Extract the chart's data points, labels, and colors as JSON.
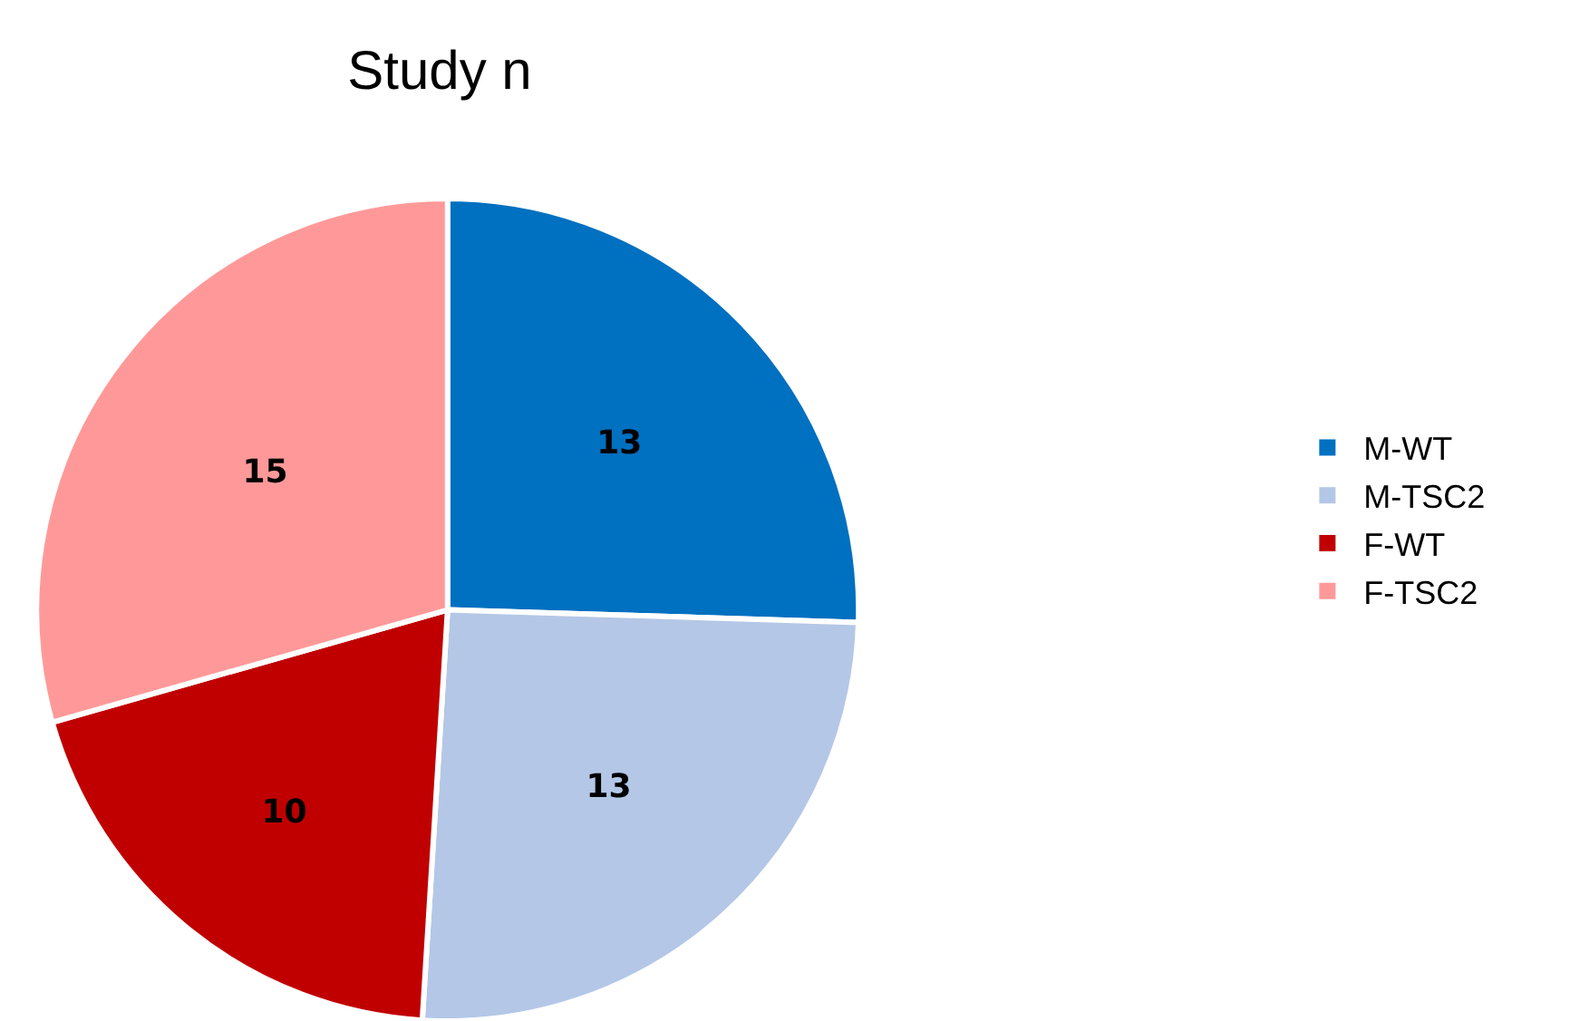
{
  "chart_data": {
    "type": "pie",
    "title": "Study n",
    "categories": [
      "M-WT",
      "M-TSC2",
      "F-WT",
      "F-TSC2"
    ],
    "values": [
      13,
      13,
      10,
      15
    ],
    "colors": [
      "#0070c0",
      "#b4c7e7",
      "#c00000",
      "#ff9999"
    ],
    "data_labels": true,
    "legend": "right"
  }
}
